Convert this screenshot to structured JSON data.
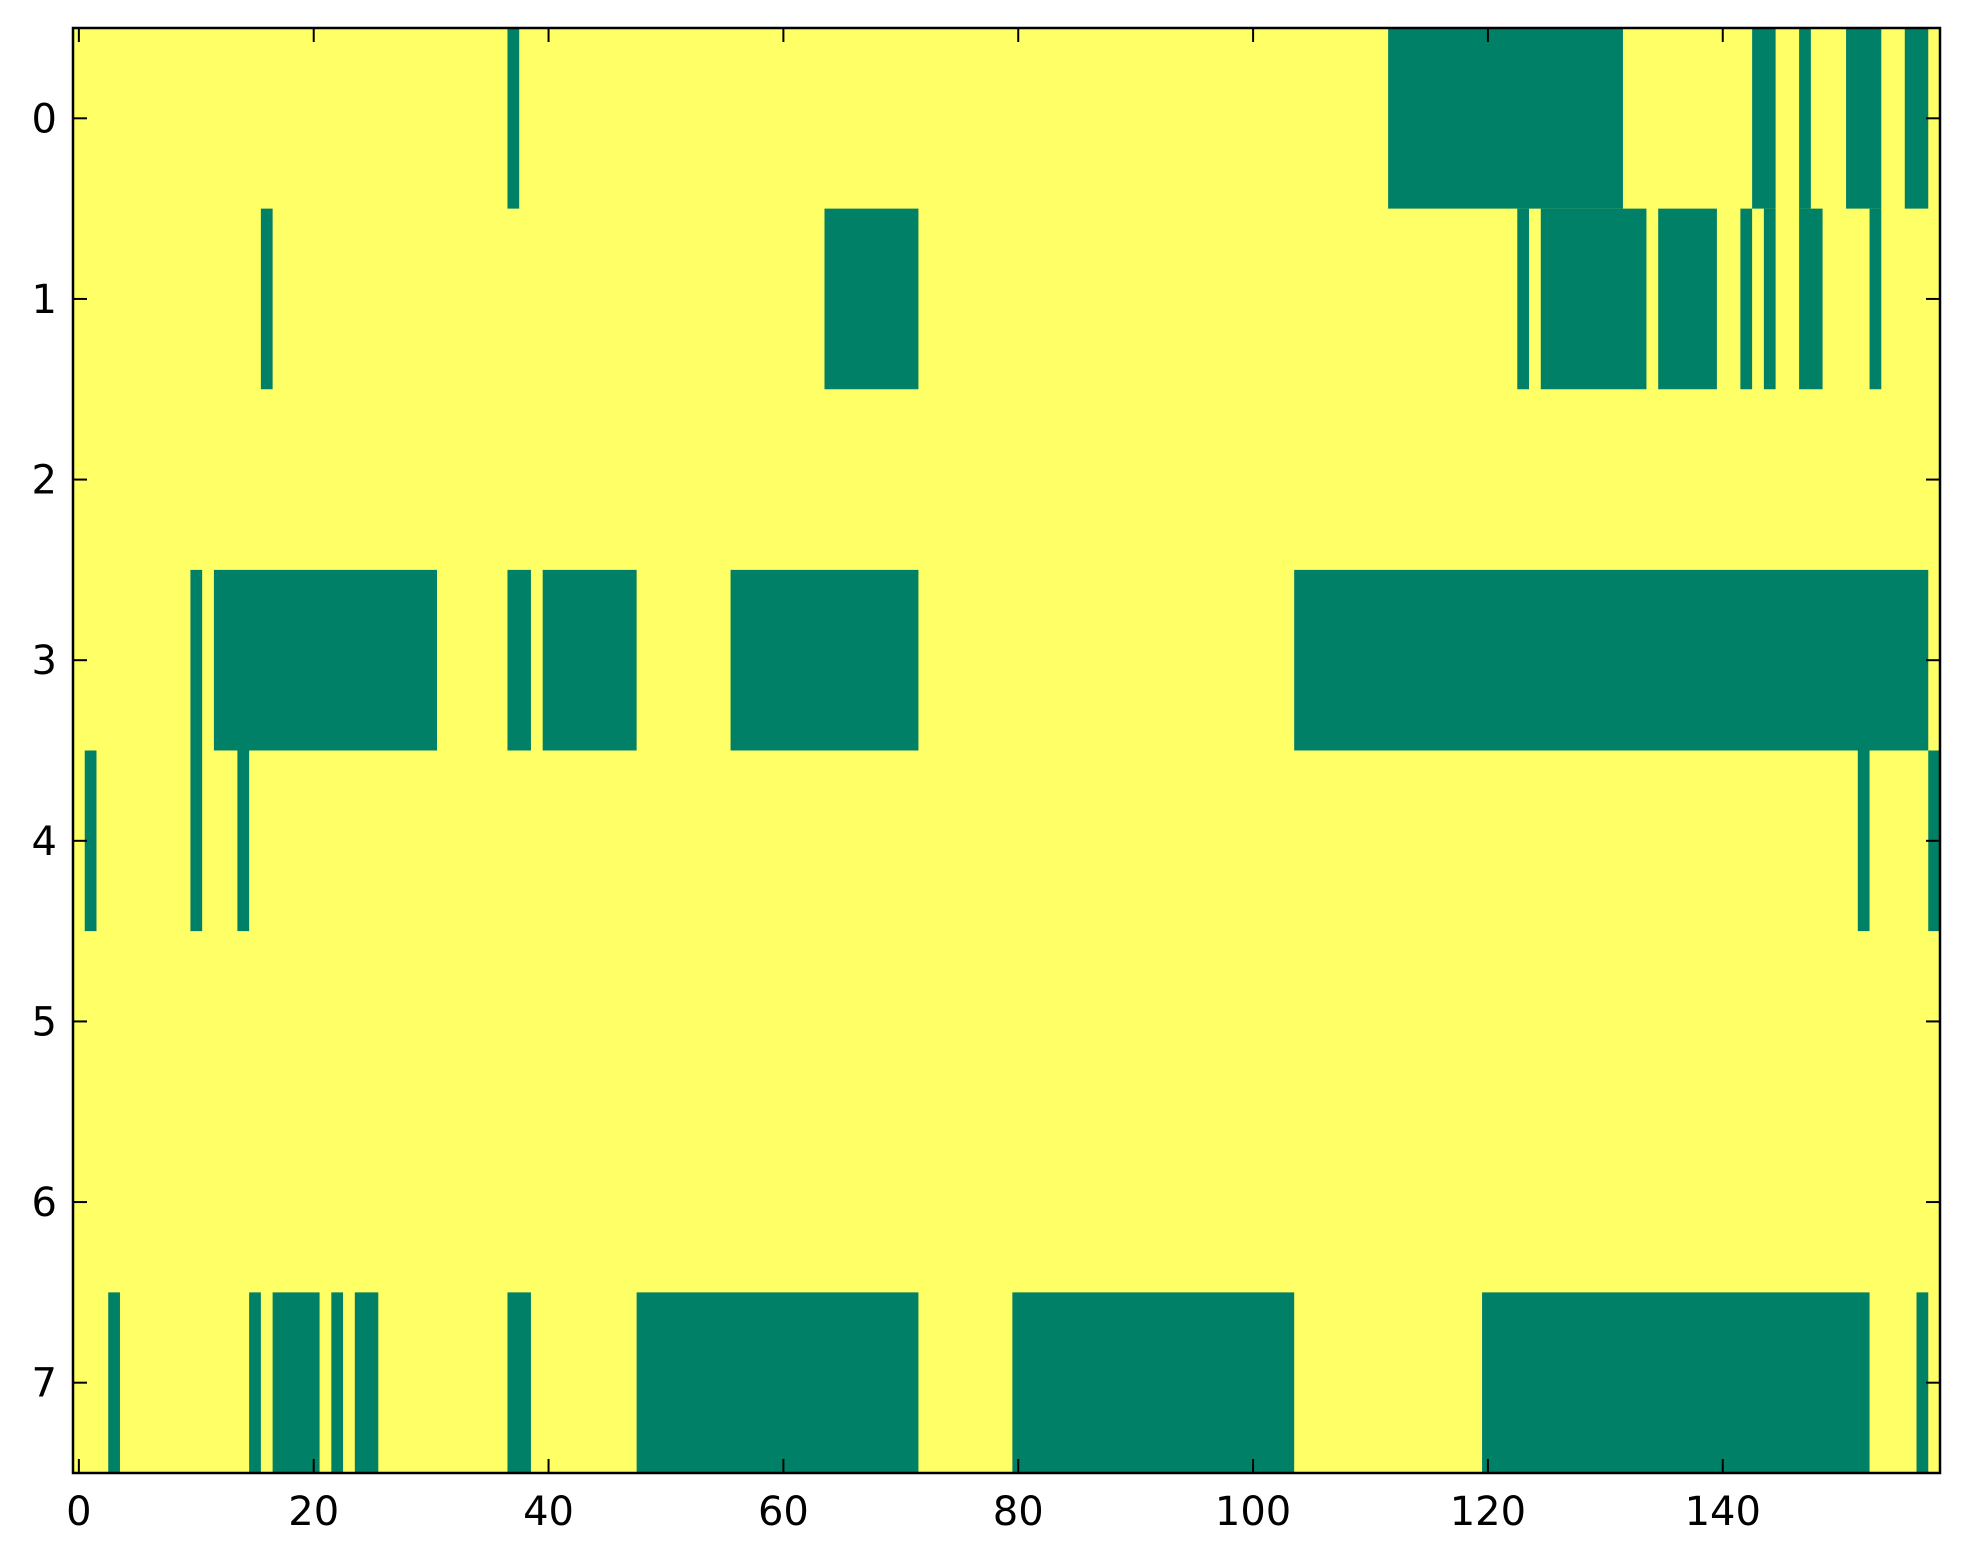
{
  "chart_data": {
    "type": "heatmap",
    "title": "",
    "xlabel": "",
    "ylabel": "",
    "rows": 8,
    "columns": 159,
    "xlim": [
      -0.5,
      158.5
    ],
    "ylim": [
      7.5,
      -0.5
    ],
    "xticks": [
      0,
      20,
      40,
      60,
      80,
      100,
      120,
      140
    ],
    "yticks": [
      0,
      1,
      2,
      3,
      4,
      5,
      6,
      7
    ],
    "grid": false,
    "legend": "none",
    "colors": {
      "background": "#ffff66",
      "filled": "#008066",
      "frame": "#000000"
    },
    "filled_runs": [
      {
        "row": 0,
        "start": 37,
        "end": 37
      },
      {
        "row": 0,
        "start": 112,
        "end": 131
      },
      {
        "row": 0,
        "start": 143,
        "end": 144
      },
      {
        "row": 0,
        "start": 147,
        "end": 147
      },
      {
        "row": 0,
        "start": 151,
        "end": 153
      },
      {
        "row": 0,
        "start": 156,
        "end": 157
      },
      {
        "row": 1,
        "start": 16,
        "end": 16
      },
      {
        "row": 1,
        "start": 64,
        "end": 71
      },
      {
        "row": 1,
        "start": 123,
        "end": 123
      },
      {
        "row": 1,
        "start": 125,
        "end": 133
      },
      {
        "row": 1,
        "start": 135,
        "end": 139
      },
      {
        "row": 1,
        "start": 142,
        "end": 142
      },
      {
        "row": 1,
        "start": 144,
        "end": 144
      },
      {
        "row": 1,
        "start": 147,
        "end": 148
      },
      {
        "row": 1,
        "start": 153,
        "end": 153
      },
      {
        "row": 3,
        "start": 10,
        "end": 10
      },
      {
        "row": 3,
        "start": 12,
        "end": 30
      },
      {
        "row": 3,
        "start": 37,
        "end": 38
      },
      {
        "row": 3,
        "start": 40,
        "end": 47
      },
      {
        "row": 3,
        "start": 56,
        "end": 71
      },
      {
        "row": 3,
        "start": 104,
        "end": 157
      },
      {
        "row": 4,
        "start": 1,
        "end": 1
      },
      {
        "row": 4,
        "start": 10,
        "end": 10
      },
      {
        "row": 4,
        "start": 14,
        "end": 14
      },
      {
        "row": 4,
        "start": 152,
        "end": 152
      },
      {
        "row": 4,
        "start": 158,
        "end": 158
      },
      {
        "row": 7,
        "start": 3,
        "end": 3
      },
      {
        "row": 7,
        "start": 15,
        "end": 15
      },
      {
        "row": 7,
        "start": 17,
        "end": 20
      },
      {
        "row": 7,
        "start": 22,
        "end": 22
      },
      {
        "row": 7,
        "start": 24,
        "end": 25
      },
      {
        "row": 7,
        "start": 37,
        "end": 38
      },
      {
        "row": 7,
        "start": 48,
        "end": 71
      },
      {
        "row": 7,
        "start": 80,
        "end": 103
      },
      {
        "row": 7,
        "start": 120,
        "end": 152
      },
      {
        "row": 7,
        "start": 157,
        "end": 157
      }
    ]
  }
}
